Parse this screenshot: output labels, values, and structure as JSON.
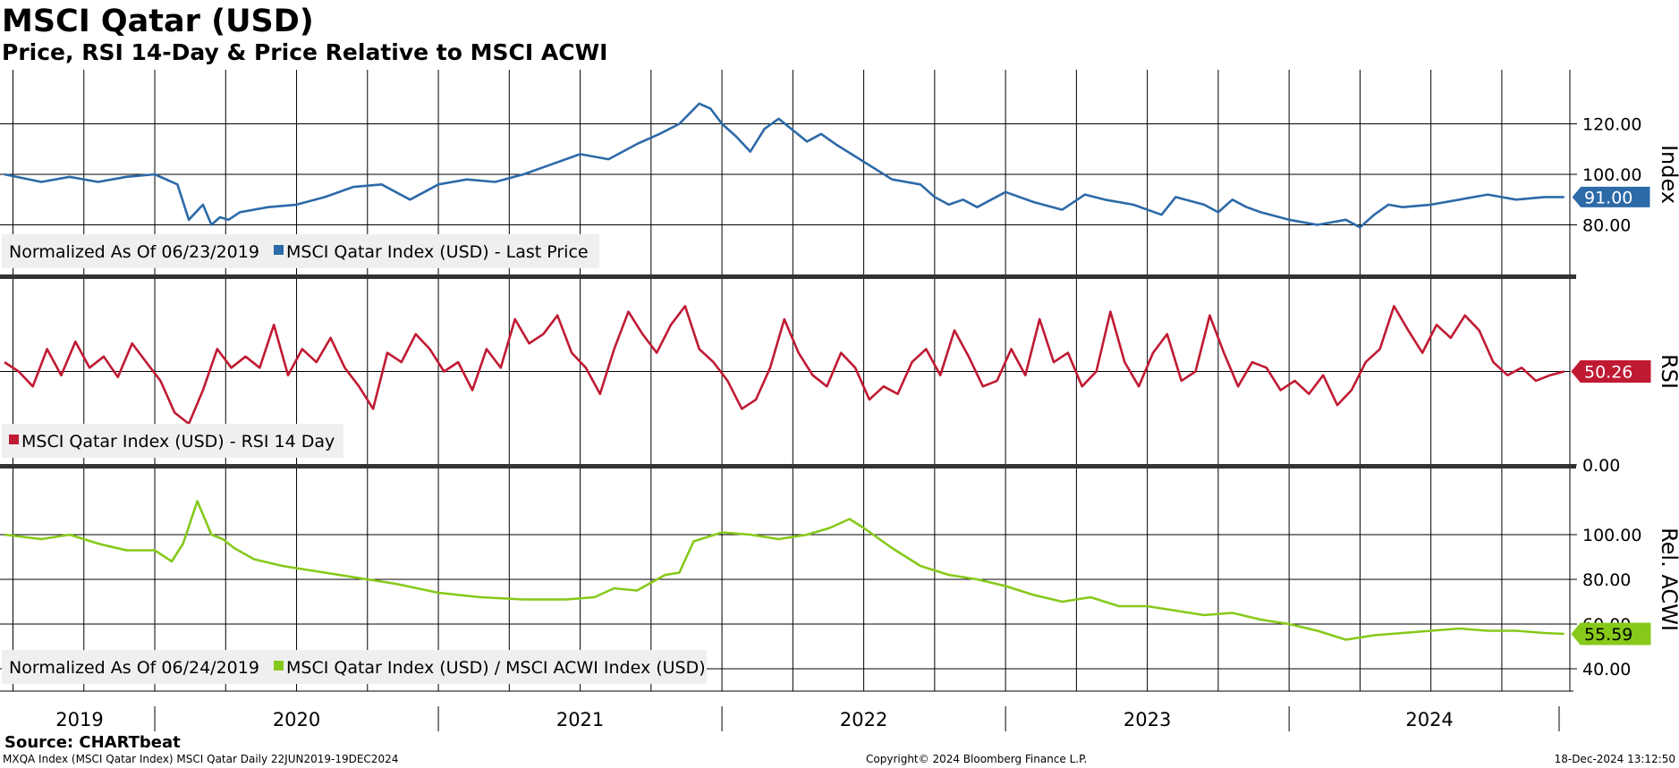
{
  "title": "MSCI Qatar (USD)",
  "subtitle": "Price, RSI 14-Day & Price Relative to MSCI ACWI",
  "source": "Source: CHARTbeat",
  "footer": {
    "left": "MXQA Index (MSCI Qatar Index) MSCI Qatar  Daily 22JUN2019-19DEC2024",
    "center": "Copyright© 2024 Bloomberg Finance L.P.",
    "right": "18-Dec-2024 13:12:50"
  },
  "colors": {
    "price": "#2d6aa8",
    "rsi": "#c01a33",
    "relative": "#86c91a",
    "grid": "#000000"
  },
  "chart_data": [
    {
      "type": "line",
      "axis_label": "Index",
      "ylim": [
        60,
        140
      ],
      "yticks": [
        "120.00",
        "100.00",
        "80.00"
      ],
      "ytick_values": [
        120,
        100,
        80
      ],
      "last_value": "91.00",
      "legend_prefix": "Normalized As Of 06/23/2019",
      "series": [
        {
          "name": "MSCI Qatar Index (USD) - Last Price",
          "x": [
            2019.47,
            2019.6,
            2019.7,
            2019.8,
            2019.9,
            2020.0,
            2020.08,
            2020.12,
            2020.17,
            2020.2,
            2020.23,
            2020.26,
            2020.3,
            2020.4,
            2020.5,
            2020.6,
            2020.7,
            2020.8,
            2020.9,
            2021.0,
            2021.1,
            2021.2,
            2021.3,
            2021.4,
            2021.5,
            2021.6,
            2021.7,
            2021.78,
            2021.85,
            2021.92,
            2021.96,
            2022.0,
            2022.05,
            2022.1,
            2022.15,
            2022.2,
            2022.3,
            2022.35,
            2022.4,
            2022.5,
            2022.6,
            2022.7,
            2022.75,
            2022.8,
            2022.85,
            2022.9,
            2023.0,
            2023.1,
            2023.2,
            2023.28,
            2023.35,
            2023.45,
            2023.55,
            2023.6,
            2023.7,
            2023.75,
            2023.8,
            2023.85,
            2023.9,
            2024.0,
            2024.1,
            2024.2,
            2024.25,
            2024.3,
            2024.35,
            2024.4,
            2024.5,
            2024.6,
            2024.7,
            2024.8,
            2024.9,
            2024.97
          ],
          "values": [
            100,
            97,
            99,
            97,
            99,
            100,
            96,
            82,
            88,
            80,
            83,
            82,
            85,
            87,
            88,
            91,
            95,
            96,
            90,
            96,
            98,
            97,
            100,
            104,
            108,
            106,
            112,
            116,
            120,
            128,
            126,
            120,
            115,
            109,
            118,
            122,
            113,
            116,
            112,
            105,
            98,
            96,
            91,
            88,
            90,
            87,
            93,
            89,
            86,
            92,
            90,
            88,
            84,
            91,
            88,
            85,
            90,
            87,
            85,
            82,
            80,
            82,
            79,
            84,
            88,
            87,
            88,
            90,
            92,
            90,
            91,
            91
          ]
        }
      ]
    },
    {
      "type": "line",
      "axis_label": "RSI",
      "ylim": [
        0,
        100
      ],
      "yticks": [
        "0.00"
      ],
      "ytick_values": [
        0
      ],
      "last_value": "50.26",
      "legend_prefix": "",
      "series": [
        {
          "name": "MSCI Qatar Index (USD) - RSI 14 Day",
          "x": [
            2019.47,
            2019.52,
            2019.57,
            2019.62,
            2019.67,
            2019.72,
            2019.77,
            2019.82,
            2019.87,
            2019.92,
            2019.97,
            2020.02,
            2020.07,
            2020.12,
            2020.17,
            2020.22,
            2020.27,
            2020.32,
            2020.37,
            2020.42,
            2020.47,
            2020.52,
            2020.57,
            2020.62,
            2020.67,
            2020.72,
            2020.77,
            2020.82,
            2020.87,
            2020.92,
            2020.97,
            2021.02,
            2021.07,
            2021.12,
            2021.17,
            2021.22,
            2021.27,
            2021.32,
            2021.37,
            2021.42,
            2021.47,
            2021.52,
            2021.57,
            2021.62,
            2021.67,
            2021.72,
            2021.77,
            2021.82,
            2021.87,
            2021.92,
            2021.97,
            2022.02,
            2022.07,
            2022.12,
            2022.17,
            2022.22,
            2022.27,
            2022.32,
            2022.37,
            2022.42,
            2022.47,
            2022.52,
            2022.57,
            2022.62,
            2022.67,
            2022.72,
            2022.77,
            2022.82,
            2022.87,
            2022.92,
            2022.97,
            2023.02,
            2023.07,
            2023.12,
            2023.17,
            2023.22,
            2023.27,
            2023.32,
            2023.37,
            2023.42,
            2023.47,
            2023.52,
            2023.57,
            2023.62,
            2023.67,
            2023.72,
            2023.77,
            2023.82,
            2023.87,
            2023.92,
            2023.97,
            2024.02,
            2024.07,
            2024.12,
            2024.17,
            2024.22,
            2024.27,
            2024.32,
            2024.37,
            2024.42,
            2024.47,
            2024.52,
            2024.57,
            2024.62,
            2024.67,
            2024.72,
            2024.77,
            2024.82,
            2024.87,
            2024.92,
            2024.97
          ],
          "values": [
            55,
            50,
            42,
            62,
            48,
            66,
            52,
            58,
            47,
            65,
            55,
            45,
            28,
            22,
            40,
            62,
            52,
            58,
            52,
            75,
            48,
            62,
            55,
            68,
            52,
            42,
            30,
            60,
            55,
            70,
            62,
            50,
            55,
            40,
            62,
            52,
            78,
            65,
            70,
            80,
            60,
            52,
            38,
            62,
            82,
            70,
            60,
            75,
            85,
            62,
            55,
            45,
            30,
            35,
            52,
            78,
            60,
            48,
            42,
            60,
            52,
            35,
            42,
            38,
            55,
            62,
            48,
            72,
            58,
            42,
            45,
            62,
            48,
            78,
            55,
            60,
            42,
            50,
            82,
            55,
            42,
            60,
            70,
            45,
            50,
            80,
            60,
            42,
            55,
            52,
            40,
            45,
            38,
            48,
            32,
            40,
            55,
            62,
            85,
            72,
            60,
            75,
            68,
            80,
            72,
            55,
            48,
            52,
            45,
            48,
            50
          ]
        }
      ]
    },
    {
      "type": "line",
      "axis_label": "Rel. ACWI",
      "ylim": [
        30,
        130
      ],
      "yticks": [
        "100.00",
        "80.00",
        "60.00",
        "40.00"
      ],
      "ytick_values": [
        100,
        80,
        60,
        40
      ],
      "last_value": "55.59",
      "legend_prefix": "Normalized As Of 06/24/2019",
      "series": [
        {
          "name": "MSCI Qatar Index (USD) / MSCI ACWI Index (USD)",
          "x": [
            2019.47,
            2019.6,
            2019.7,
            2019.8,
            2019.9,
            2020.0,
            2020.06,
            2020.1,
            2020.15,
            2020.2,
            2020.24,
            2020.28,
            2020.35,
            2020.45,
            2020.55,
            2020.7,
            2020.85,
            2021.0,
            2021.15,
            2021.3,
            2021.45,
            2021.55,
            2021.62,
            2021.7,
            2021.8,
            2021.85,
            2021.9,
            2022.0,
            2022.1,
            2022.2,
            2022.3,
            2022.38,
            2022.45,
            2022.5,
            2022.6,
            2022.7,
            2022.8,
            2022.9,
            2023.0,
            2023.1,
            2023.2,
            2023.3,
            2023.4,
            2023.5,
            2023.6,
            2023.7,
            2023.8,
            2023.9,
            2024.0,
            2024.1,
            2024.2,
            2024.3,
            2024.4,
            2024.5,
            2024.6,
            2024.7,
            2024.8,
            2024.9,
            2024.97
          ],
          "values": [
            100,
            98,
            100,
            96,
            93,
            93,
            88,
            96,
            115,
            100,
            98,
            94,
            89,
            86,
            84,
            81,
            78,
            74,
            72,
            71,
            71,
            72,
            76,
            75,
            82,
            83,
            97,
            101,
            100,
            98,
            100,
            103,
            107,
            103,
            94,
            86,
            82,
            80,
            77,
            73,
            70,
            72,
            68,
            68,
            66,
            64,
            65,
            62,
            60,
            57,
            53,
            55,
            56,
            57,
            58,
            57,
            57,
            56,
            55.59
          ]
        }
      ]
    }
  ],
  "x_axis": {
    "ticks": [
      "2019",
      "2020",
      "2021",
      "2022",
      "2023",
      "2024"
    ],
    "xlim": [
      2019.47,
      2024.99
    ]
  }
}
